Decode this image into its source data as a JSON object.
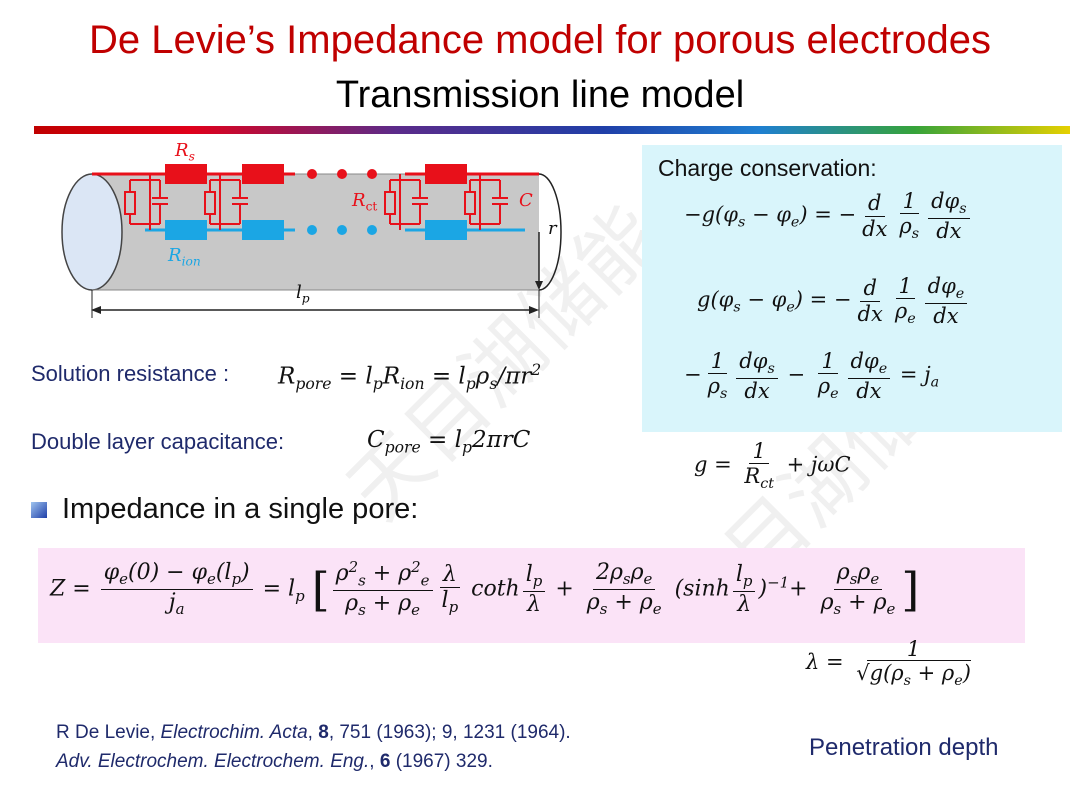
{
  "title": "De Levie’s Impedance model for porous electrodes",
  "subtitle": "Transmission line model",
  "diagram": {
    "label_rs": "R",
    "label_rs_sub": "s",
    "label_rct": "R",
    "label_rct_sub": "ct",
    "label_c": "C",
    "label_r": "r",
    "label_rion": "R",
    "label_rion_sub": "ion",
    "label_lp": "l",
    "label_lp_sub": "p",
    "colors": {
      "red": "#e8101a",
      "blue": "#1ba6e4",
      "cylinder": "#c8c8c8",
      "cap": "#dbe6f5"
    }
  },
  "solution_resistance_label": "Solution resistance :",
  "double_layer_label": "Double layer capacitance:",
  "bullet_text": "Impedance in a single pore:",
  "charge_conservation_label": "Charge conservation:",
  "penetration_label": "Penetration depth",
  "ref_line1": {
    "author": "R De Levie, ",
    "journal": "Electrochim. Acta",
    "sep1": ", ",
    "vol": "8",
    "rest": ", 751 (1963); 9, 1231 (1964)."
  },
  "ref_line2": {
    "journal": "Adv. Electrochem. Electrochem. Eng.",
    "sep1": ", ",
    "vol": "6",
    "rest": " (1967) 329."
  }
}
